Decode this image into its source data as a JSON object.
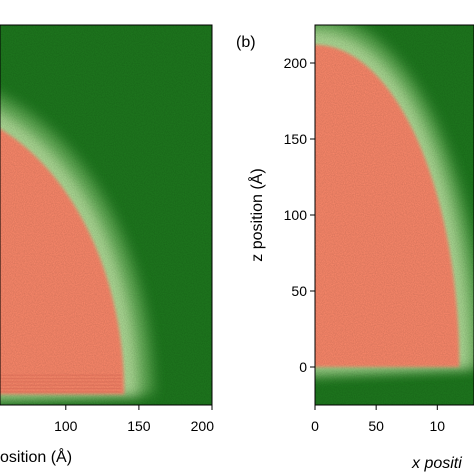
{
  "chart_data": [
    {
      "type": "heatmap",
      "panel_label": "",
      "xlabel": "osition (Å)",
      "ylabel": "",
      "xlim": [
        55,
        200
      ],
      "ylim": [
        -25,
        225
      ],
      "x_ticks": [
        "100",
        "150",
        "200"
      ],
      "y_ticks": [],
      "shape": {
        "kind": "quarter-ellipse",
        "center_x": 0,
        "base_z": -18,
        "radius_x": 140,
        "radius_z": 190,
        "interface_z": -18
      },
      "colors": {
        "inside": "#ff8a6c",
        "outside": "#1e7a1e",
        "interface": "#e6f7c8"
      }
    },
    {
      "type": "heatmap",
      "panel_label": "(b)",
      "xlabel": "x positi",
      "ylabel": "z position (Å)",
      "xlim": [
        0,
        130
      ],
      "ylim": [
        -25,
        225
      ],
      "x_ticks": [
        "0",
        "50",
        "10"
      ],
      "y_ticks": [
        "0",
        "50",
        "100",
        "150",
        "200"
      ],
      "shape": {
        "kind": "quarter-ellipse",
        "center_x": 0,
        "base_z": 0,
        "radius_x": 118,
        "radius_z": 212,
        "interface_z": 0
      },
      "colors": {
        "inside": "#ff8a6c",
        "outside": "#1e7a1e",
        "interface": "#e6f7c8"
      }
    }
  ]
}
